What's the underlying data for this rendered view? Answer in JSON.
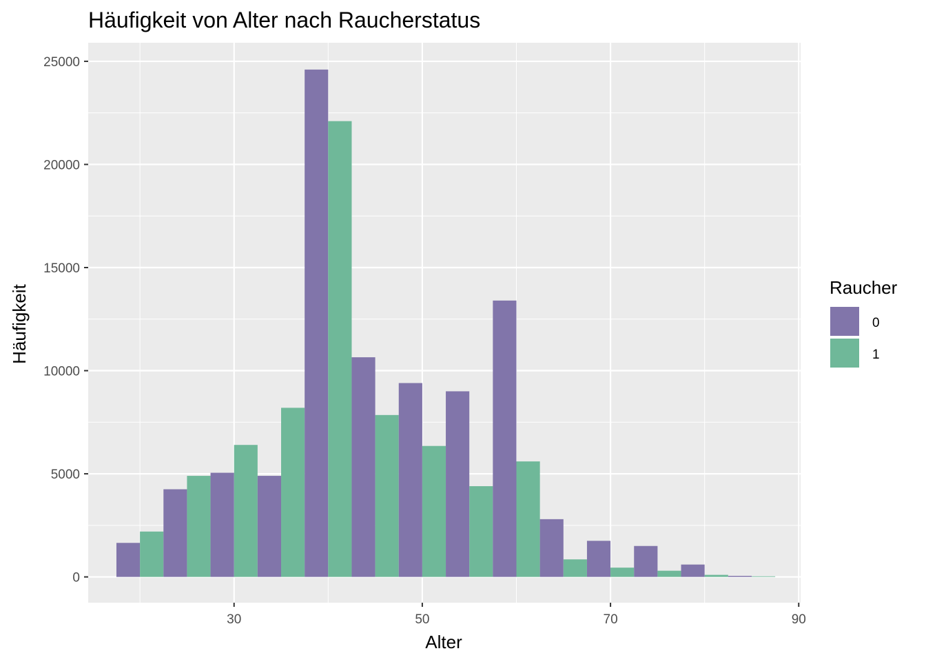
{
  "chart_data": {
    "type": "bar",
    "title": "Häufigkeit von Alter nach Raucherstatus",
    "xlabel": "Alter",
    "ylabel": "Häufigkeit",
    "x": [
      20,
      25,
      30,
      35,
      40,
      45,
      50,
      55,
      60,
      65,
      70,
      75,
      80,
      85
    ],
    "xlim": [
      14.5,
      90.2
    ],
    "ylim": [
      -1250,
      25900
    ],
    "xticks": [
      30,
      50,
      70,
      90
    ],
    "yticks": [
      0,
      5000,
      10000,
      15000,
      20000,
      25000
    ],
    "grid": true,
    "legend": {
      "title": "Raucher",
      "position": "right"
    },
    "series": [
      {
        "name": "0",
        "color": "#8175AA",
        "values": [
          1650,
          4250,
          5050,
          4900,
          24600,
          10650,
          9400,
          9000,
          13400,
          2800,
          1750,
          1500,
          600,
          50
        ]
      },
      {
        "name": "1",
        "color": "#6FB899",
        "values": [
          2200,
          4900,
          6400,
          8200,
          22100,
          7850,
          6350,
          4400,
          5600,
          850,
          450,
          300,
          100,
          30
        ]
      }
    ]
  }
}
